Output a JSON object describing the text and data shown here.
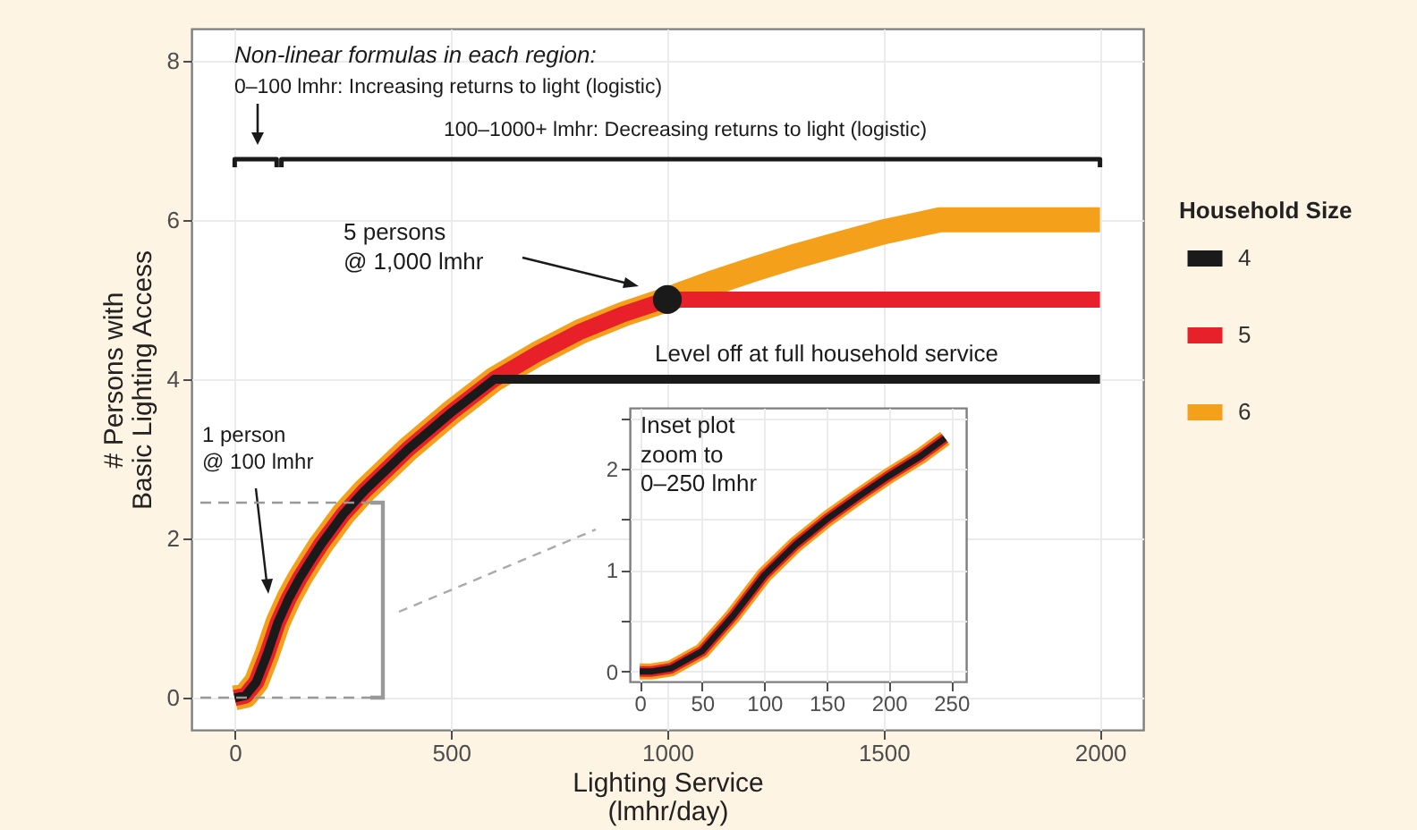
{
  "chart_data": [
    {
      "type": "line",
      "xlabel": "Lighting Service\n(lmhr/day)",
      "ylabel": "# Persons with\nBasic Lighting Access",
      "legend_title": "Household Size",
      "legend": "right",
      "grid": true,
      "xlim": [
        -100,
        2100
      ],
      "ylim": [
        -0.4,
        8.4
      ],
      "xticks": [
        0,
        500,
        1000,
        1500,
        2000
      ],
      "yticks": [
        0,
        2,
        4,
        6,
        8
      ],
      "annotations": [
        "Non-linear formulas in each region:",
        "0–100 lmhr: Increasing returns to light (logistic)",
        "100–1000+ lmhr: Decreasing returns to light (logistic)",
        "5 persons\n@ 1,000 lmhr",
        "Level off at full household service",
        "1 person\n@ 100 lmhr"
      ],
      "series": [
        {
          "name": "4",
          "color": "#1a1a1a",
          "x": [
            0,
            25,
            50,
            75,
            100,
            125,
            150,
            175,
            200,
            250,
            300,
            400,
            500,
            600,
            2000
          ],
          "values": [
            0,
            0.03,
            0.2,
            0.55,
            0.95,
            1.25,
            1.5,
            1.72,
            1.93,
            2.3,
            2.6,
            3.12,
            3.58,
            4.0,
            4.0
          ]
        },
        {
          "name": "5",
          "color": "#e8202a",
          "x": [
            0,
            25,
            50,
            75,
            100,
            125,
            150,
            175,
            200,
            250,
            300,
            400,
            500,
            600,
            700,
            800,
            900,
            1000,
            2000
          ],
          "values": [
            0,
            0.03,
            0.2,
            0.55,
            0.95,
            1.25,
            1.5,
            1.72,
            1.93,
            2.3,
            2.6,
            3.12,
            3.58,
            4.0,
            4.32,
            4.6,
            4.82,
            5.0,
            5.0
          ]
        },
        {
          "name": "6",
          "color": "#f5a01a",
          "x": [
            0,
            25,
            50,
            75,
            100,
            125,
            150,
            175,
            200,
            250,
            300,
            400,
            500,
            600,
            700,
            800,
            900,
            1000,
            1100,
            1200,
            1300,
            1400,
            1500,
            1630,
            2000
          ],
          "values": [
            0,
            0.03,
            0.2,
            0.55,
            0.95,
            1.25,
            1.5,
            1.72,
            1.93,
            2.3,
            2.6,
            3.12,
            3.58,
            4.0,
            4.32,
            4.6,
            4.82,
            5.0,
            5.2,
            5.38,
            5.55,
            5.7,
            5.85,
            6.0,
            6.0
          ]
        },
        {
          "type": "scatter",
          "color": "#1a1a1a",
          "x": [
            1000
          ],
          "values": [
            5
          ]
        },
        {
          "color": "#1a1a1a",
          "x": [
            0,
            0,
            97,
            97
          ],
          "values": [
            6.66,
            6.76,
            6.76,
            6.66
          ]
        },
        {
          "color": "#1a1a1a",
          "x": [
            108,
            108,
            2000,
            2000
          ],
          "values": [
            6.66,
            6.76,
            6.76,
            6.66
          ]
        }
      ]
    },
    {
      "type": "line",
      "grid": true,
      "xlim": [
        -8,
        262
      ],
      "ylim": [
        -0.1,
        2.6
      ],
      "xticks": [
        0,
        50,
        100,
        150,
        200,
        250
      ],
      "yticks": [
        0,
        {
          "value": 0.5,
          "label": null
        },
        1,
        {
          "value": 1.5,
          "label": null
        },
        2,
        {
          "value": 2.5,
          "label": null
        }
      ],
      "annotations": [
        "Inset plot\nzoom to\n0–250 lmhr"
      ],
      "series": [
        {
          "color": "#1a1a1a",
          "x": [
            0,
            10,
            25,
            50,
            75,
            100,
            125,
            150,
            175,
            200,
            225,
            245
          ],
          "values": [
            0,
            0,
            0.03,
            0.2,
            0.55,
            0.95,
            1.25,
            1.5,
            1.72,
            1.93,
            2.12,
            2.3
          ]
        },
        {
          "color": "#e8202a",
          "x": [
            0,
            10,
            25,
            50,
            75,
            100,
            125,
            150,
            175,
            200,
            225,
            245
          ],
          "values": [
            0,
            0,
            0.03,
            0.2,
            0.55,
            0.95,
            1.25,
            1.5,
            1.72,
            1.93,
            2.12,
            2.3
          ]
        },
        {
          "color": "#f5a01a",
          "x": [
            0,
            10,
            25,
            50,
            75,
            100,
            125,
            150,
            175,
            200,
            225,
            245
          ],
          "values": [
            0,
            0,
            0.03,
            0.2,
            0.55,
            0.95,
            1.25,
            1.5,
            1.72,
            1.93,
            2.12,
            2.3
          ]
        }
      ]
    }
  ]
}
